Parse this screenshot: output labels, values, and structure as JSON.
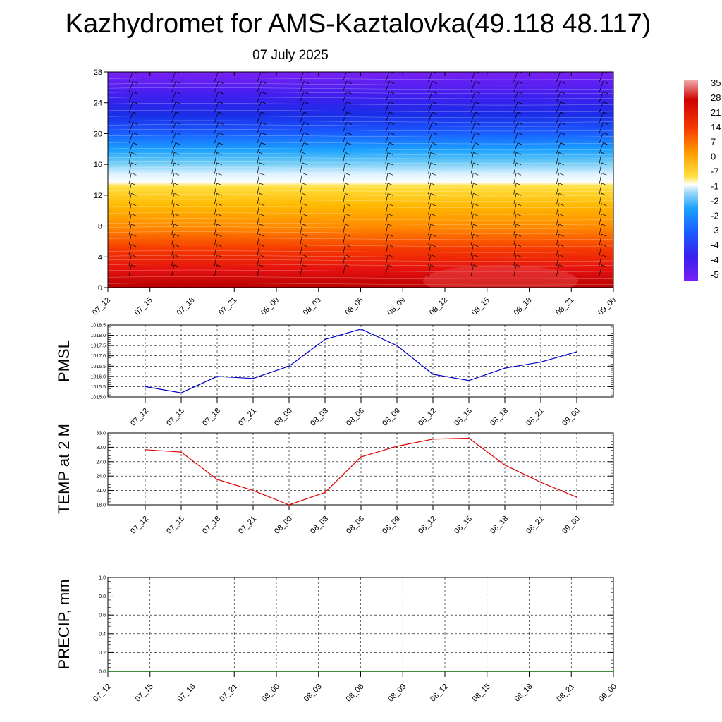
{
  "title": "Kazhydromet for AMS-Kaztalovka(49.118 48.117)",
  "subtitle": "07 July 2025",
  "colors": {
    "pmsl_line": "#0000cc",
    "temp_line": "#dd0000",
    "precip_line": "#006600"
  },
  "chart_data": [
    {
      "type": "heatmap",
      "title": "",
      "x_labels": [
        "07_12",
        "07_15",
        "07_18",
        "07_21",
        "08_00",
        "08_03",
        "08_06",
        "08_09",
        "08_12",
        "08_15",
        "08_18",
        "08_21",
        "09_00"
      ],
      "y_ticks": [
        0,
        4,
        8,
        12,
        16,
        20,
        24,
        28
      ],
      "ylim": [
        0,
        28
      ],
      "colorbar_labels": [
        "35",
        "28",
        "21",
        "14",
        "7",
        "0",
        "-7",
        "-1",
        "-2",
        "-2",
        "-3",
        "-4",
        "-4",
        "-5"
      ],
      "overlay": "wind barbs",
      "legend_position": "right"
    },
    {
      "type": "line",
      "ylabel": "PMSL",
      "x": [
        "07_12",
        "07_15",
        "07_18",
        "07_21",
        "08_00",
        "08_03",
        "08_06",
        "08_09",
        "08_12",
        "08_15",
        "08_18",
        "08_21",
        "09_00"
      ],
      "values": [
        1015.5,
        1015.2,
        1016.0,
        1015.9,
        1016.5,
        1017.8,
        1018.3,
        1017.5,
        1016.1,
        1015.8,
        1016.4,
        1016.7,
        1017.2
      ],
      "ylim": [
        1015.0,
        1018.5
      ],
      "y_ticks": [
        "1015.0",
        "1015.5",
        "1016.0",
        "1016.5",
        "1017.0",
        "1017.5",
        "1018.0",
        "1018.5"
      ],
      "grid": true
    },
    {
      "type": "line",
      "ylabel": "TEMP at 2 M",
      "x": [
        "07_12",
        "07_15",
        "07_18",
        "07_21",
        "08_00",
        "08_03",
        "08_06",
        "08_09",
        "08_12",
        "08_15",
        "08_18",
        "08_21",
        "09_00"
      ],
      "values": [
        29.5,
        29.0,
        23.3,
        21.0,
        18.0,
        20.6,
        28.0,
        30.2,
        31.7,
        31.9,
        26.3,
        22.7,
        19.6
      ],
      "ylim": [
        18.0,
        33.0
      ],
      "y_ticks": [
        "18.0",
        "21.0",
        "24.0",
        "27.0",
        "30.0",
        "33.0"
      ],
      "grid": true
    },
    {
      "type": "line",
      "ylabel": "PRECIP, mm",
      "x": [
        "07_12",
        "07_15",
        "07_18",
        "07_21",
        "08_00",
        "08_03",
        "08_06",
        "08_09",
        "08_12",
        "08_15",
        "08_18",
        "08_21",
        "09_00"
      ],
      "values": [
        0,
        0,
        0,
        0,
        0,
        0,
        0,
        0,
        0,
        0,
        0,
        0,
        0
      ],
      "ylim": [
        0.0,
        1.0
      ],
      "y_ticks": [
        "0.0",
        "0.2",
        "0.4",
        "0.6",
        "0.8",
        "1.0"
      ],
      "grid": true
    }
  ]
}
